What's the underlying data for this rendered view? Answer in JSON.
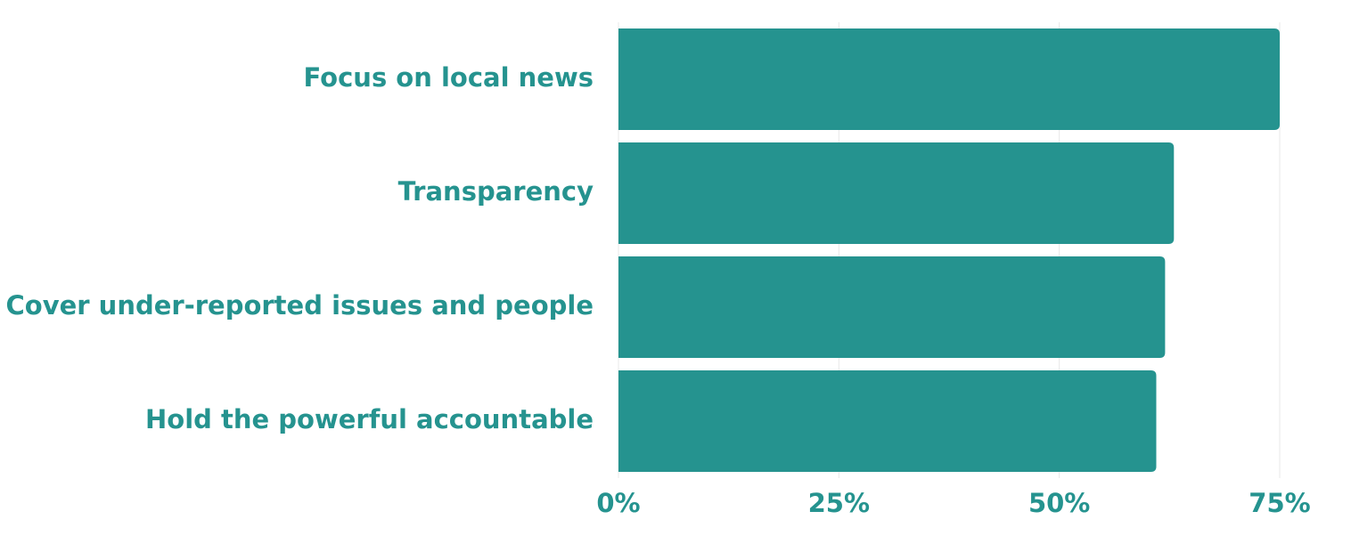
{
  "chart_data": {
    "type": "barh",
    "categories": [
      "Focus on local news",
      "Transparency",
      "Cover under-reported issues and people",
      "Hold the powerful accountable"
    ],
    "values": [
      75,
      63,
      62,
      61
    ],
    "color": "#25938f",
    "xlim": [
      0,
      75
    ],
    "xticks": [
      {
        "value": 0,
        "label": "0%"
      },
      {
        "value": 25,
        "label": "25%"
      },
      {
        "value": 50,
        "label": "50%"
      },
      {
        "value": 75,
        "label": "75%"
      }
    ],
    "grid": true
  }
}
